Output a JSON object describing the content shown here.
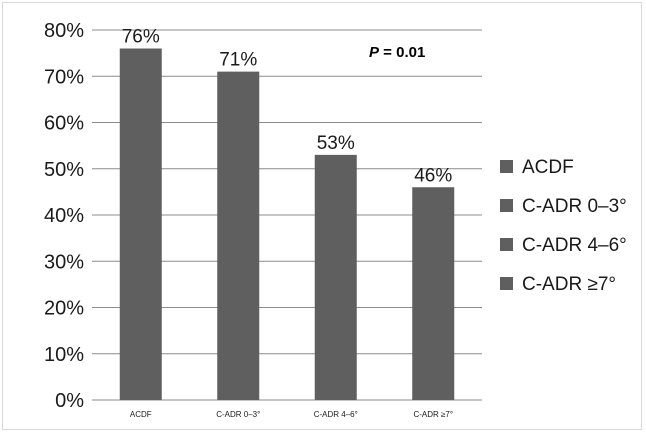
{
  "chart_data": {
    "type": "bar",
    "categories": [
      "ACDF",
      "C-ADR 0–3°",
      "C-ADR 4–6°",
      "C-ADR ≥7°"
    ],
    "values": [
      76,
      71,
      53,
      46
    ],
    "data_labels": [
      "76%",
      "71%",
      "53%",
      "46%"
    ],
    "legend": [
      "ACDF",
      "C-ADR 0–3°",
      "C-ADR 4–6°",
      "C-ADR ≥7°"
    ],
    "legend_position": "right",
    "ylim": [
      0,
      80
    ],
    "yticks": [
      "0%",
      "10%",
      "20%",
      "30%",
      "40%",
      "50%",
      "60%",
      "70%",
      "80%"
    ],
    "grid": true,
    "bar_color": "#5f5f5f",
    "annotation": {
      "p_symbol": "P",
      "p_text": " = 0.01"
    },
    "title": "",
    "xlabel": "",
    "ylabel": ""
  }
}
